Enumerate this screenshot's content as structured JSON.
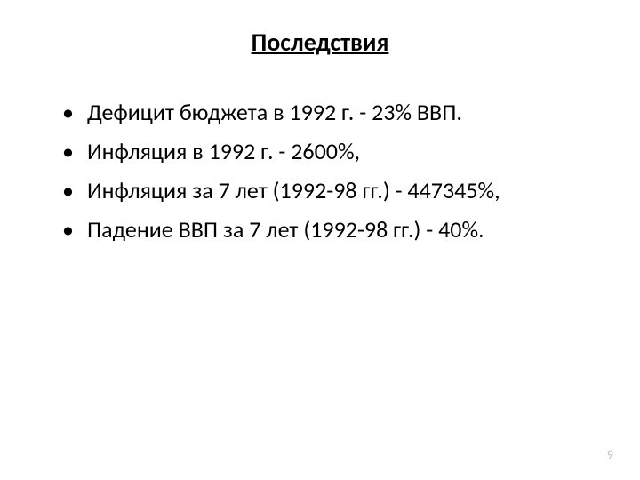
{
  "slide": {
    "title": "Последствия",
    "title_fontsize": 28,
    "bullets": [
      "Дефицит бюджета в 1992 г. - 23% ВВП.",
      "Инфляция в 1992 г. - 2600%,",
      "Инфляция за 7 лет (1992-98 гг.) - 447345%,",
      "Падение ВВП за 7 лет (1992-98 гг.) - 40%."
    ],
    "bullet_fontsize": 26,
    "page_number": "9",
    "page_number_fontsize": 14,
    "page_number_color": "#bfbfbf",
    "background_color": "#ffffff",
    "text_color": "#000000"
  }
}
